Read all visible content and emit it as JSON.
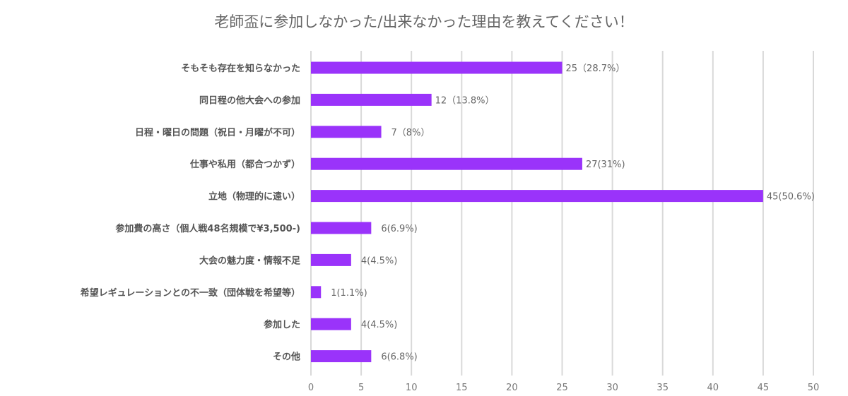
{
  "chart_data": {
    "type": "bar",
    "orientation": "horizontal",
    "title": "老師盃に参加しなかった/出来なかった理由を教えてください！",
    "xlabel": "",
    "ylabel": "",
    "xlim": [
      0,
      50
    ],
    "x_ticks": [
      "0",
      "5",
      "10",
      "15",
      "20",
      "25",
      "30",
      "35",
      "40",
      "45",
      "50"
    ],
    "grid": "vertical",
    "legend": "none",
    "bar_color": "#9a33fa",
    "categories": [
      "そもそも存在を知らなかった",
      "同日程の他大会への参加",
      "日程・曜日の問題（祝日・月曜が不可）",
      "仕事や私用（都合つかず）",
      "立地（物理的に遠い）",
      "参加費の高さ（個人戦48名規模で¥3,500-)",
      "大会の魅力度・情報不足",
      "希望レギュレーションとの不一致（団体戦を希望等）",
      "参加した",
      "その他"
    ],
    "values": [
      25,
      12,
      7,
      27,
      45,
      6,
      4,
      1,
      4,
      6
    ],
    "data_labels": [
      "25（28.7%）",
      "12（13.8%）",
      "7（8%）",
      "27(31%)",
      "45(50.6%)",
      "6(6.9%)",
      "4(4.5%)",
      "1(1.1%)",
      "4(4.5%)",
      "6(6.8%)"
    ]
  }
}
